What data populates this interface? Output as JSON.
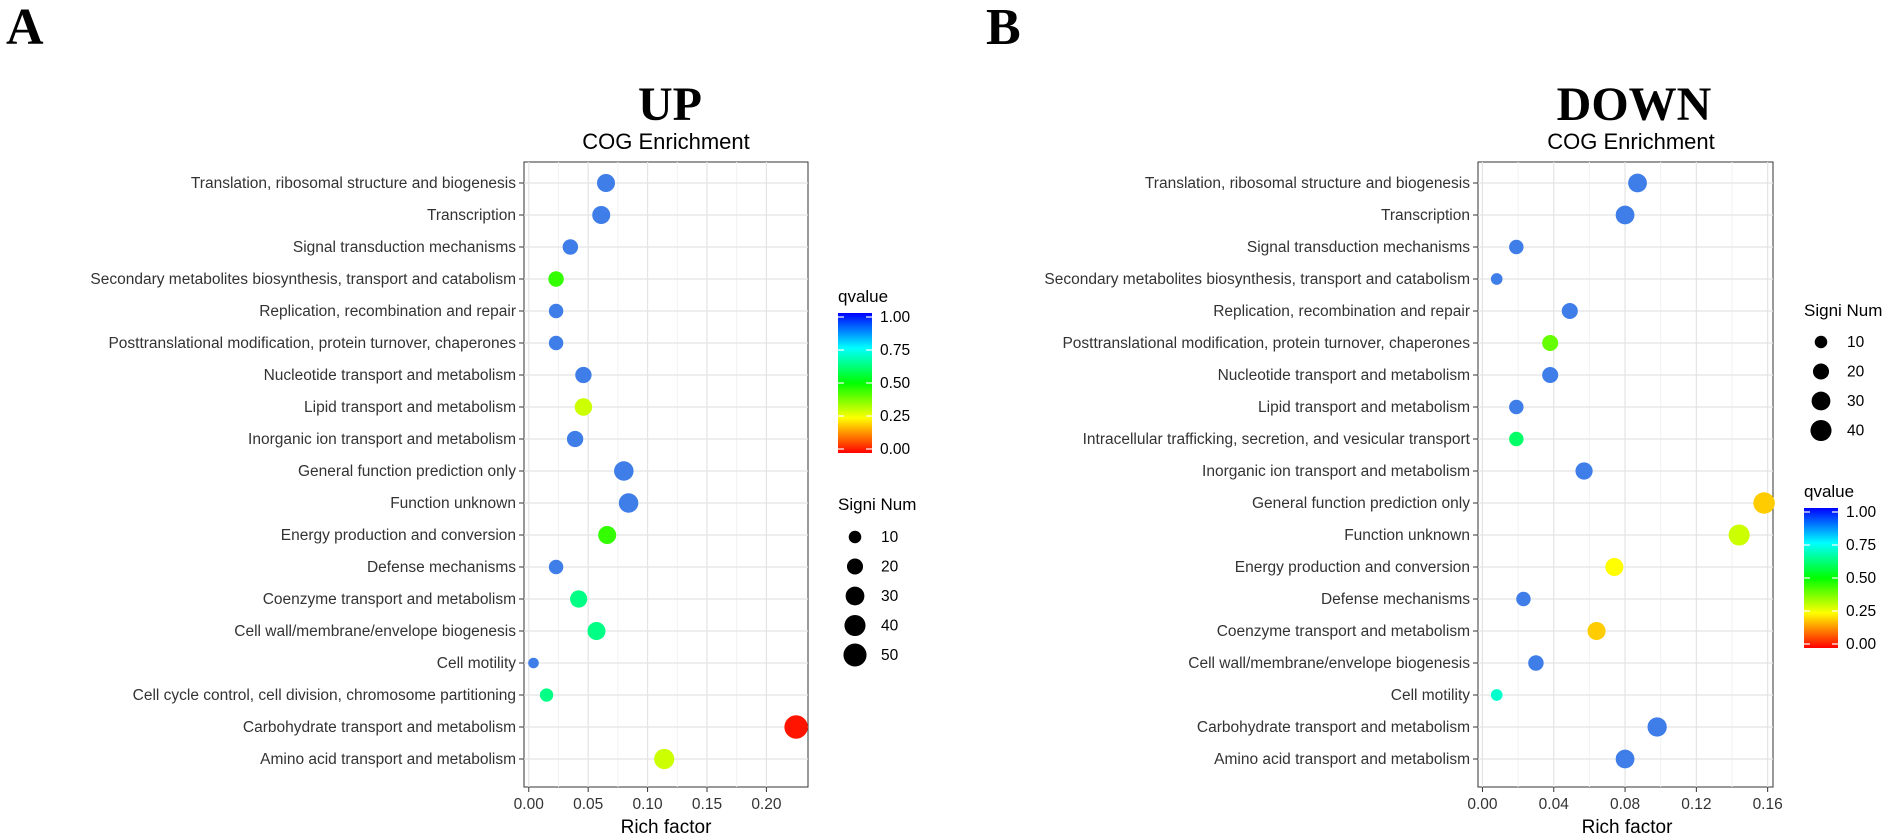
{
  "chart_data": [
    {
      "panel_letter": "A",
      "title": "UP",
      "subtitle": "COG Enrichment",
      "type": "scatter",
      "xlabel": "Rich factor",
      "xlim": [
        -0.004,
        0.235
      ],
      "xticks": [
        0.0,
        0.05,
        0.1,
        0.15,
        0.2
      ],
      "xtick_labels": [
        "0.00",
        "0.05",
        "0.10",
        "0.15",
        "0.20"
      ],
      "categories": [
        "Translation, ribosomal structure and biogenesis",
        "Transcription",
        "Signal transduction mechanisms",
        "Secondary metabolites biosynthesis, transport and catabolism",
        "Replication, recombination and repair",
        "Posttranslational modification, protein turnover, chaperones",
        "Nucleotide transport and metabolism",
        "Lipid transport and metabolism",
        "Inorganic ion transport and metabolism",
        "General function prediction only",
        "Function unknown",
        "Energy production and conversion",
        "Defense mechanisms",
        "Coenzyme transport and metabolism",
        "Cell wall/membrane/envelope biogenesis",
        "Cell motility",
        "Cell cycle control, cell division, chromosome partitioning",
        "Carbohydrate transport and metabolism",
        "Amino acid transport and metabolism"
      ],
      "rich_factor": [
        0.065,
        0.061,
        0.035,
        0.023,
        0.023,
        0.023,
        0.046,
        0.046,
        0.039,
        0.08,
        0.084,
        0.066,
        0.023,
        0.042,
        0.057,
        0.004,
        0.015,
        0.225,
        0.114
      ],
      "signi_num": [
        27,
        27,
        18,
        18,
        15,
        15,
        21,
        25,
        21,
        33,
        33,
        27,
        15,
        24,
        27,
        6,
        12,
        52,
        36
      ],
      "qvalue": [
        0.8,
        0.8,
        0.8,
        0.45,
        0.8,
        0.8,
        0.8,
        0.3,
        0.8,
        0.8,
        0.8,
        0.45,
        0.8,
        0.63,
        0.63,
        0.8,
        0.63,
        0.02,
        0.3
      ],
      "qvalue_legend": {
        "title": "qvalue",
        "labels": [
          "1.00",
          "0.75",
          "0.50",
          "0.25",
          "0.00"
        ]
      },
      "size_legend": {
        "title": "Signi Num",
        "labels": [
          "10",
          "20",
          "30",
          "40",
          "50"
        ],
        "values": [
          10,
          20,
          30,
          40,
          50
        ]
      }
    },
    {
      "panel_letter": "B",
      "title": "DOWN",
      "subtitle": "COG Enrichment",
      "type": "scatter",
      "xlabel": "Rich factor",
      "xlim": [
        -0.0025,
        0.163
      ],
      "xticks": [
        0.0,
        0.04,
        0.08,
        0.12,
        0.16
      ],
      "xtick_labels": [
        "0.00",
        "0.04",
        "0.08",
        "0.12",
        "0.16"
      ],
      "categories": [
        "Translation, ribosomal structure and biogenesis",
        "Transcription",
        "Signal transduction mechanisms",
        "Secondary metabolites biosynthesis, transport and catabolism",
        "Replication, recombination and repair",
        "Posttranslational modification, protein turnover, chaperones",
        "Nucleotide transport and metabolism",
        "Lipid transport and metabolism",
        "Intracellular trafficking, secretion, and vesicular transport",
        "Inorganic ion transport and metabolism",
        "General function prediction only",
        "Function unknown",
        "Energy production and conversion",
        "Defense mechanisms",
        "Coenzyme transport and metabolism",
        "Cell wall/membrane/envelope biogenesis",
        "Cell motility",
        "Carbohydrate transport and metabolism",
        "Amino acid transport and metabolism"
      ],
      "rich_factor": [
        0.087,
        0.08,
        0.019,
        0.008,
        0.049,
        0.038,
        0.038,
        0.019,
        0.019,
        0.057,
        0.158,
        0.144,
        0.074,
        0.023,
        0.064,
        0.03,
        0.008,
        0.098,
        0.08
      ],
      "signi_num": [
        30,
        30,
        15,
        8,
        20,
        20,
        20,
        15,
        15,
        24,
        42,
        40,
        27,
        15,
        27,
        18,
        8,
        32,
        30
      ],
      "qvalue": [
        0.8,
        0.8,
        0.8,
        0.8,
        0.8,
        0.4,
        0.8,
        0.8,
        0.6,
        0.8,
        0.2,
        0.3,
        0.25,
        0.8,
        0.2,
        0.8,
        0.7,
        0.8,
        0.8
      ],
      "size_legend": {
        "title": "Signi Num",
        "labels": [
          "10",
          "20",
          "30",
          "40"
        ],
        "values": [
          10,
          20,
          30,
          40
        ]
      },
      "qvalue_legend": {
        "title": "qvalue",
        "labels": [
          "1.00",
          "0.75",
          "0.50",
          "0.25",
          "0.00"
        ]
      }
    }
  ]
}
